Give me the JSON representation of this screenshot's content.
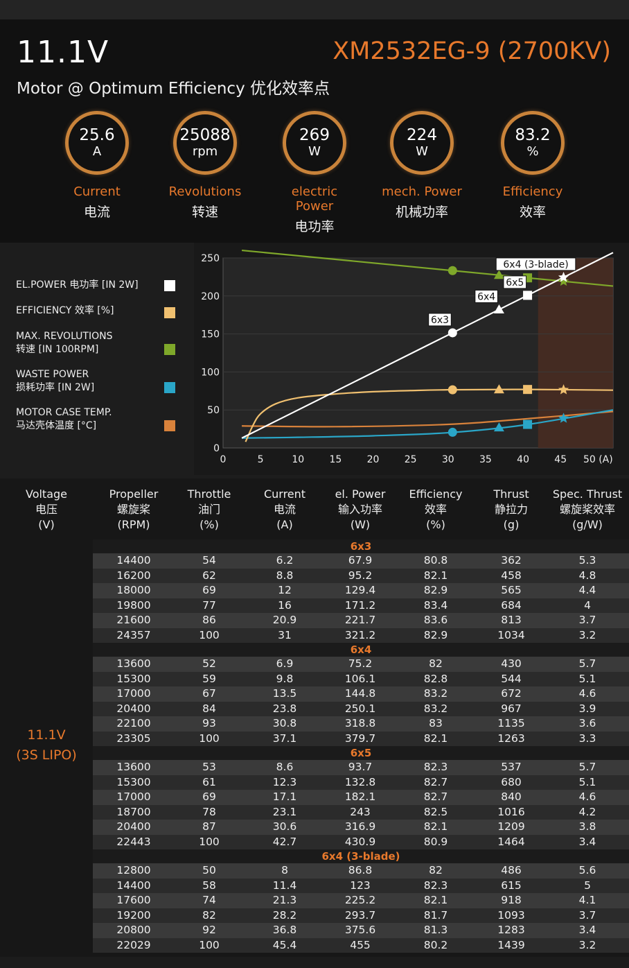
{
  "header": {
    "voltage": "11.1V",
    "model": "XM2532EG-9 (2700KV)",
    "subtitle": "Motor @ Optimum Efficiency  优化效率点"
  },
  "stats": [
    {
      "value": "25.6",
      "unit": "A",
      "label_en": "Current",
      "label_cn": "电流"
    },
    {
      "value": "25088",
      "unit": "rpm",
      "label_en": "Revolutions",
      "label_cn": "转速"
    },
    {
      "value": "269",
      "unit": "W",
      "label_en": "electric Power",
      "label_cn": "电功率"
    },
    {
      "value": "224",
      "unit": "W",
      "label_en": "mech. Power",
      "label_cn": "机械功率"
    },
    {
      "value": "83.2",
      "unit": "%",
      "label_en": "Efficiency",
      "label_cn": "效率"
    }
  ],
  "legend": [
    {
      "line1": "EL.POWER 电功率 [IN 2W]",
      "line2": "",
      "color": "#ffffff"
    },
    {
      "line1": "EFFICIENCY 效率 [%]",
      "line2": "",
      "color": "#f0c070"
    },
    {
      "line1": "MAX. REVOLUTIONS",
      "line2": "转速 [IN 100RPM]",
      "color": "#7fa82a"
    },
    {
      "line1": "WASTE POWER",
      "line2": "损耗功率 [IN 2W]",
      "color": "#2aa6c8"
    },
    {
      "line1": "MOTOR CASE TEMP.",
      "line2": "马达壳体温度 [°C]",
      "color": "#d9823b"
    }
  ],
  "chart_data": {
    "type": "line",
    "x_ticks": [
      "0",
      "5",
      "10",
      "15",
      "20",
      "25",
      "30",
      "35",
      "40",
      "45",
      "50 (A)"
    ],
    "y_ticks": [
      "0",
      "50",
      "100",
      "150",
      "200",
      "250"
    ],
    "xlim": [
      0,
      52
    ],
    "ylim": [
      0,
      250
    ],
    "shaded_range": [
      42,
      52
    ],
    "series": [
      {
        "name": "EL.POWER 电功率 [IN 2W]",
        "color": "#ffffff",
        "points": [
          [
            2.5,
            13
          ],
          [
            52,
            257
          ]
        ]
      },
      {
        "name": "EFFICIENCY 效率 [%]",
        "color": "#f0c070",
        "points": [
          [
            3,
            8
          ],
          [
            4,
            30
          ],
          [
            5,
            45
          ],
          [
            7,
            58
          ],
          [
            10,
            66
          ],
          [
            15,
            71
          ],
          [
            20,
            74
          ],
          [
            25,
            75.5
          ],
          [
            30,
            76.5
          ],
          [
            40,
            77
          ],
          [
            52,
            76
          ]
        ]
      },
      {
        "name": "MAX. REVOLUTIONS 转速 [IN 100RPM]",
        "color": "#7fa82a",
        "points": [
          [
            2.5,
            260
          ],
          [
            52,
            213
          ]
        ]
      },
      {
        "name": "WASTE POWER 损耗功率 [IN 2W]",
        "color": "#2aa6c8",
        "points": [
          [
            2.5,
            13
          ],
          [
            10,
            14
          ],
          [
            20,
            16
          ],
          [
            30,
            20
          ],
          [
            40,
            30
          ],
          [
            52,
            50
          ]
        ]
      },
      {
        "name": "MOTOR CASE TEMP. 马达壳体温度 [°C]",
        "color": "#d9823b",
        "points": [
          [
            2.5,
            29
          ],
          [
            15,
            28
          ],
          [
            30,
            31
          ],
          [
            40,
            38
          ],
          [
            52,
            48
          ]
        ]
      }
    ],
    "annotations": [
      {
        "label": "6x3",
        "x": 30.6
      },
      {
        "label": "6x4",
        "x": 36.8
      },
      {
        "label": "6x5",
        "x": 40.6
      },
      {
        "label": "6x4 (3-blade)",
        "x": 45.4
      }
    ]
  },
  "table": {
    "headers": [
      {
        "en": "Voltage",
        "cn": "电压",
        "unit": "(V)"
      },
      {
        "en": "Propeller",
        "cn": "螺旋桨",
        "unit": "(RPM)"
      },
      {
        "en": "Throttle",
        "cn": "油门",
        "unit": "(%)"
      },
      {
        "en": "Current",
        "cn": "电流",
        "unit": "(A)"
      },
      {
        "en": "el. Power",
        "cn": "输入功率",
        "unit": "(W)"
      },
      {
        "en": "Efficiency",
        "cn": "效率",
        "unit": "(%)"
      },
      {
        "en": "Thrust",
        "cn": "静拉力",
        "unit": "(g)"
      },
      {
        "en": "Spec. Thrust",
        "cn": "螺旋桨效率",
        "unit": "(g/W)"
      }
    ],
    "voltage_label": [
      "11.1V",
      "(3S LIPO)"
    ],
    "groups": [
      {
        "name": "6x3",
        "rows": [
          [
            "14400",
            "54",
            "6.2",
            "67.9",
            "80.8",
            "362",
            "5.3"
          ],
          [
            "16200",
            "62",
            "8.8",
            "95.2",
            "82.1",
            "458",
            "4.8"
          ],
          [
            "18000",
            "69",
            "12",
            "129.4",
            "82.9",
            "565",
            "4.4"
          ],
          [
            "19800",
            "77",
            "16",
            "171.2",
            "83.4",
            "684",
            "4"
          ],
          [
            "21600",
            "86",
            "20.9",
            "221.7",
            "83.6",
            "813",
            "3.7"
          ],
          [
            "24357",
            "100",
            "31",
            "321.2",
            "82.9",
            "1034",
            "3.2"
          ]
        ]
      },
      {
        "name": "6x4",
        "rows": [
          [
            "13600",
            "52",
            "6.9",
            "75.2",
            "82",
            "430",
            "5.7"
          ],
          [
            "15300",
            "59",
            "9.8",
            "106.1",
            "82.8",
            "544",
            "5.1"
          ],
          [
            "17000",
            "67",
            "13.5",
            "144.8",
            "83.2",
            "672",
            "4.6"
          ],
          [
            "20400",
            "84",
            "23.8",
            "250.1",
            "83.2",
            "967",
            "3.9"
          ],
          [
            "22100",
            "93",
            "30.8",
            "318.8",
            "83",
            "1135",
            "3.6"
          ],
          [
            "23305",
            "100",
            "37.1",
            "379.7",
            "82.1",
            "1263",
            "3.3"
          ]
        ]
      },
      {
        "name": "6x5",
        "rows": [
          [
            "13600",
            "53",
            "8.6",
            "93.7",
            "82.3",
            "537",
            "5.7"
          ],
          [
            "15300",
            "61",
            "12.3",
            "132.8",
            "82.7",
            "680",
            "5.1"
          ],
          [
            "17000",
            "69",
            "17.1",
            "182.1",
            "82.7",
            "840",
            "4.6"
          ],
          [
            "18700",
            "78",
            "23.1",
            "243",
            "82.5",
            "1016",
            "4.2"
          ],
          [
            "20400",
            "87",
            "30.6",
            "316.9",
            "82.1",
            "1209",
            "3.8"
          ],
          [
            "22443",
            "100",
            "42.7",
            "430.9",
            "80.9",
            "1464",
            "3.4"
          ]
        ]
      },
      {
        "name": "6x4 (3-blade)",
        "rows": [
          [
            "12800",
            "50",
            "8",
            "86.8",
            "82",
            "486",
            "5.6"
          ],
          [
            "14400",
            "58",
            "11.4",
            "123",
            "82.3",
            "615",
            "5"
          ],
          [
            "17600",
            "74",
            "21.3",
            "225.2",
            "82.1",
            "918",
            "4.1"
          ],
          [
            "19200",
            "82",
            "28.2",
            "293.7",
            "81.7",
            "1093",
            "3.7"
          ],
          [
            "20800",
            "92",
            "36.8",
            "375.6",
            "81.3",
            "1283",
            "3.4"
          ],
          [
            "22029",
            "100",
            "45.4",
            "455",
            "80.2",
            "1439",
            "3.2"
          ]
        ]
      }
    ]
  }
}
